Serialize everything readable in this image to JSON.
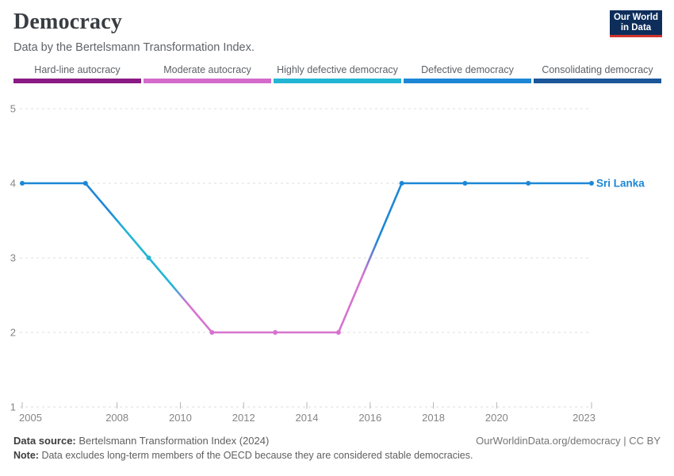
{
  "header": {
    "title": "Democracy",
    "subtitle": "Data by the Bertelsmann Transformation Index.",
    "logo": {
      "line1": "Our World",
      "line2": "in Data",
      "bg_color": "#0d2d5b",
      "bar_color": "#d0342c"
    }
  },
  "legend": {
    "items": [
      {
        "label": "Hard-line autocracy",
        "color": "#8a1a85"
      },
      {
        "label": "Moderate autocracy",
        "color": "#d36bcb"
      },
      {
        "label": "Highly defective democracy",
        "color": "#23b5d4"
      },
      {
        "label": "Defective democracy",
        "color": "#1d87d6"
      },
      {
        "label": "Consolidating democracy",
        "color": "#1a5699"
      }
    ]
  },
  "chart_data": {
    "type": "line",
    "title": "Democracy",
    "xlabel": "",
    "ylabel": "",
    "series": [
      {
        "name": "Sri Lanka",
        "x": [
          2005,
          2007,
          2009,
          2011,
          2013,
          2015,
          2017,
          2019,
          2021,
          2023
        ],
        "values": [
          4,
          4,
          3,
          2,
          2,
          2,
          4,
          4,
          4,
          4
        ]
      }
    ],
    "xlim": [
      2005,
      2023
    ],
    "ylim": [
      1,
      5
    ],
    "xticks": [
      2005,
      2008,
      2010,
      2012,
      2014,
      2016,
      2018,
      2020,
      2023
    ],
    "yticks": [
      1,
      2,
      3,
      4,
      5
    ],
    "grid": "horizontal-dashed",
    "legend_position": "end-of-line",
    "value_colors": {
      "2": "#d673ce",
      "3": "#23b5d4",
      "4": "#1d87d6"
    },
    "entity_label": "Sri Lanka",
    "entity_label_color": "#1d87d6"
  },
  "footer": {
    "source_label": "Data source:",
    "source_text": "Bertelsmann Transformation Index (2024)",
    "attribution": "OurWorldinData.org/democracy | CC BY",
    "note_label": "Note:",
    "note_text": "Data excludes long-term members of the OECD because they are considered stable democracies."
  }
}
